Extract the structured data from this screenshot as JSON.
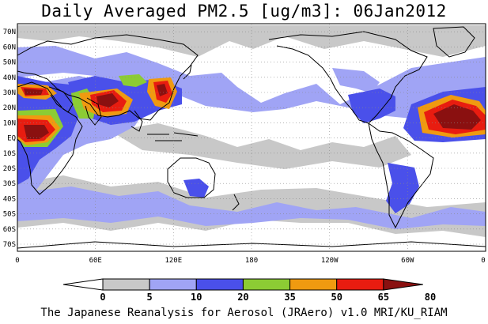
{
  "title": "Daily Averaged PM2.5 [ug/m3]: 06Jan2012",
  "footer": "The Japanese Reanalysis for Aerosol (JRAero) v1.0 MRI/KU_RIAM",
  "map": {
    "projection": "equirectangular",
    "lon_range": [
      0,
      360
    ],
    "lat_range": [
      -75,
      75
    ],
    "lat_ticks": [
      "70N",
      "60N",
      "50N",
      "40N",
      "30N",
      "20N",
      "10N",
      "EQ",
      "10S",
      "20S",
      "30S",
      "40S",
      "50S",
      "60S",
      "70S"
    ],
    "lon_ticks": [
      "0",
      "60E",
      "120E",
      "180",
      "120W",
      "60W",
      "0"
    ],
    "gridlines": "dotted"
  },
  "colorbar": {
    "levels": [
      "0",
      "5",
      "10",
      "20",
      "35",
      "50",
      "65",
      "80"
    ],
    "colors": [
      "#ffffff",
      "#c8c8c8",
      "#a0a4f5",
      "#4a50ea",
      "#8ccc34",
      "#f09a10",
      "#e81c10",
      "#8a1010"
    ],
    "extends": "both"
  }
}
